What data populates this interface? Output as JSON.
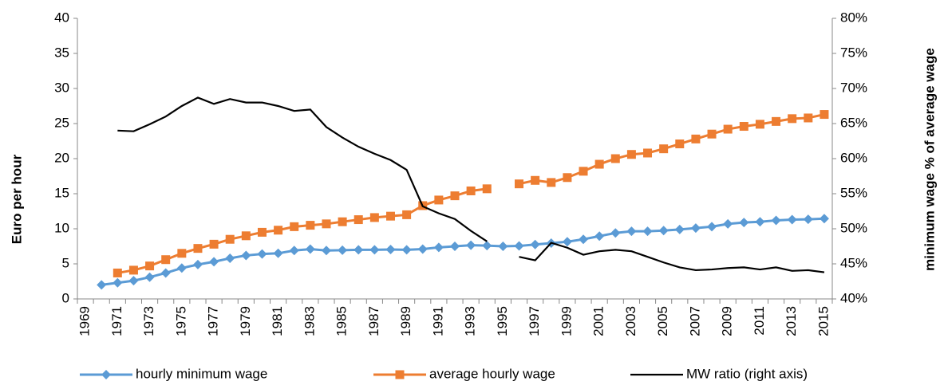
{
  "chart_data": {
    "type": "line",
    "categories": [
      "1969",
      null,
      "1971",
      null,
      "1973",
      null,
      "1975",
      null,
      "1977",
      null,
      "1979",
      null,
      "1981",
      null,
      "1983",
      null,
      "1985",
      null,
      "1987",
      null,
      "1989",
      null,
      "1991",
      null,
      "1993",
      null,
      "1995",
      null,
      "1997",
      null,
      "1999",
      null,
      "2001",
      null,
      "2003",
      null,
      "2005",
      null,
      "2007",
      null,
      "2009",
      null,
      "2011",
      null,
      "2013",
      null,
      "2015"
    ],
    "y_label": "Euro per hour",
    "y2_label": "minimum wage % of average wage",
    "ylim": [
      0,
      40
    ],
    "yticks": [
      0,
      5,
      10,
      15,
      20,
      25,
      30,
      35,
      40
    ],
    "y2lim": [
      40,
      80
    ],
    "y2ticks": [
      {
        "value": 40,
        "label": "40%"
      },
      {
        "value": 45,
        "label": "45%"
      },
      {
        "value": 50,
        "label": "50%"
      },
      {
        "value": 55,
        "label": "55%"
      },
      {
        "value": 60,
        "label": "60%"
      },
      {
        "value": 65,
        "label": "65%"
      },
      {
        "value": 70,
        "label": "70%"
      },
      {
        "value": 75,
        "label": "75%"
      },
      {
        "value": 80,
        "label": "80%"
      }
    ],
    "grid": false,
    "legend": "bottom",
    "series": [
      {
        "name": "hourly minimum wage",
        "color": "#5b9bd5",
        "marker": "diamond",
        "axis": "y",
        "values": [
          null,
          2.0,
          2.3,
          2.6,
          3.1,
          3.7,
          4.4,
          4.9,
          5.3,
          5.8,
          6.2,
          6.4,
          6.5,
          6.9,
          7.1,
          6.9,
          6.95,
          7.0,
          7.0,
          7.05,
          7.0,
          7.1,
          7.35,
          7.5,
          7.65,
          7.6,
          7.5,
          7.55,
          7.75,
          7.95,
          8.15,
          8.5,
          8.95,
          9.4,
          9.65,
          9.65,
          9.75,
          9.9,
          10.1,
          10.3,
          10.7,
          10.9,
          11.0,
          11.2,
          11.3,
          11.35,
          11.45
        ]
      },
      {
        "name": "average hourly wage",
        "color": "#ed7d31",
        "marker": "square",
        "axis": "y",
        "values": [
          null,
          null,
          3.7,
          4.1,
          4.7,
          5.6,
          6.5,
          7.2,
          7.8,
          8.5,
          9.0,
          9.5,
          9.8,
          10.3,
          10.5,
          10.7,
          11.0,
          11.3,
          11.6,
          11.8,
          12.0,
          13.3,
          14.1,
          14.7,
          15.4,
          15.7,
          null,
          16.4,
          16.9,
          16.6,
          17.3,
          18.2,
          19.2,
          20.0,
          20.6,
          20.8,
          21.4,
          22.1,
          22.8,
          23.5,
          24.2,
          24.6,
          24.9,
          25.3,
          25.7,
          25.8,
          26.3
        ]
      },
      {
        "name": "MW ratio (right axis)",
        "color": "#000000",
        "marker": "none",
        "axis": "y2",
        "values": [
          null,
          null,
          64.0,
          63.9,
          64.9,
          66.0,
          67.5,
          68.7,
          67.8,
          68.5,
          68.0,
          68.0,
          67.5,
          66.8,
          67.0,
          64.5,
          63.0,
          61.7,
          60.7,
          59.8,
          58.4,
          53.2,
          52.2,
          51.4,
          49.7,
          48.2,
          null,
          46.0,
          45.5,
          48.0,
          47.3,
          46.3,
          46.8,
          47.0,
          46.8,
          46.0,
          45.2,
          44.5,
          44.1,
          44.2,
          44.4,
          44.5,
          44.2,
          44.5,
          44.0,
          44.1,
          43.8
        ]
      }
    ]
  }
}
